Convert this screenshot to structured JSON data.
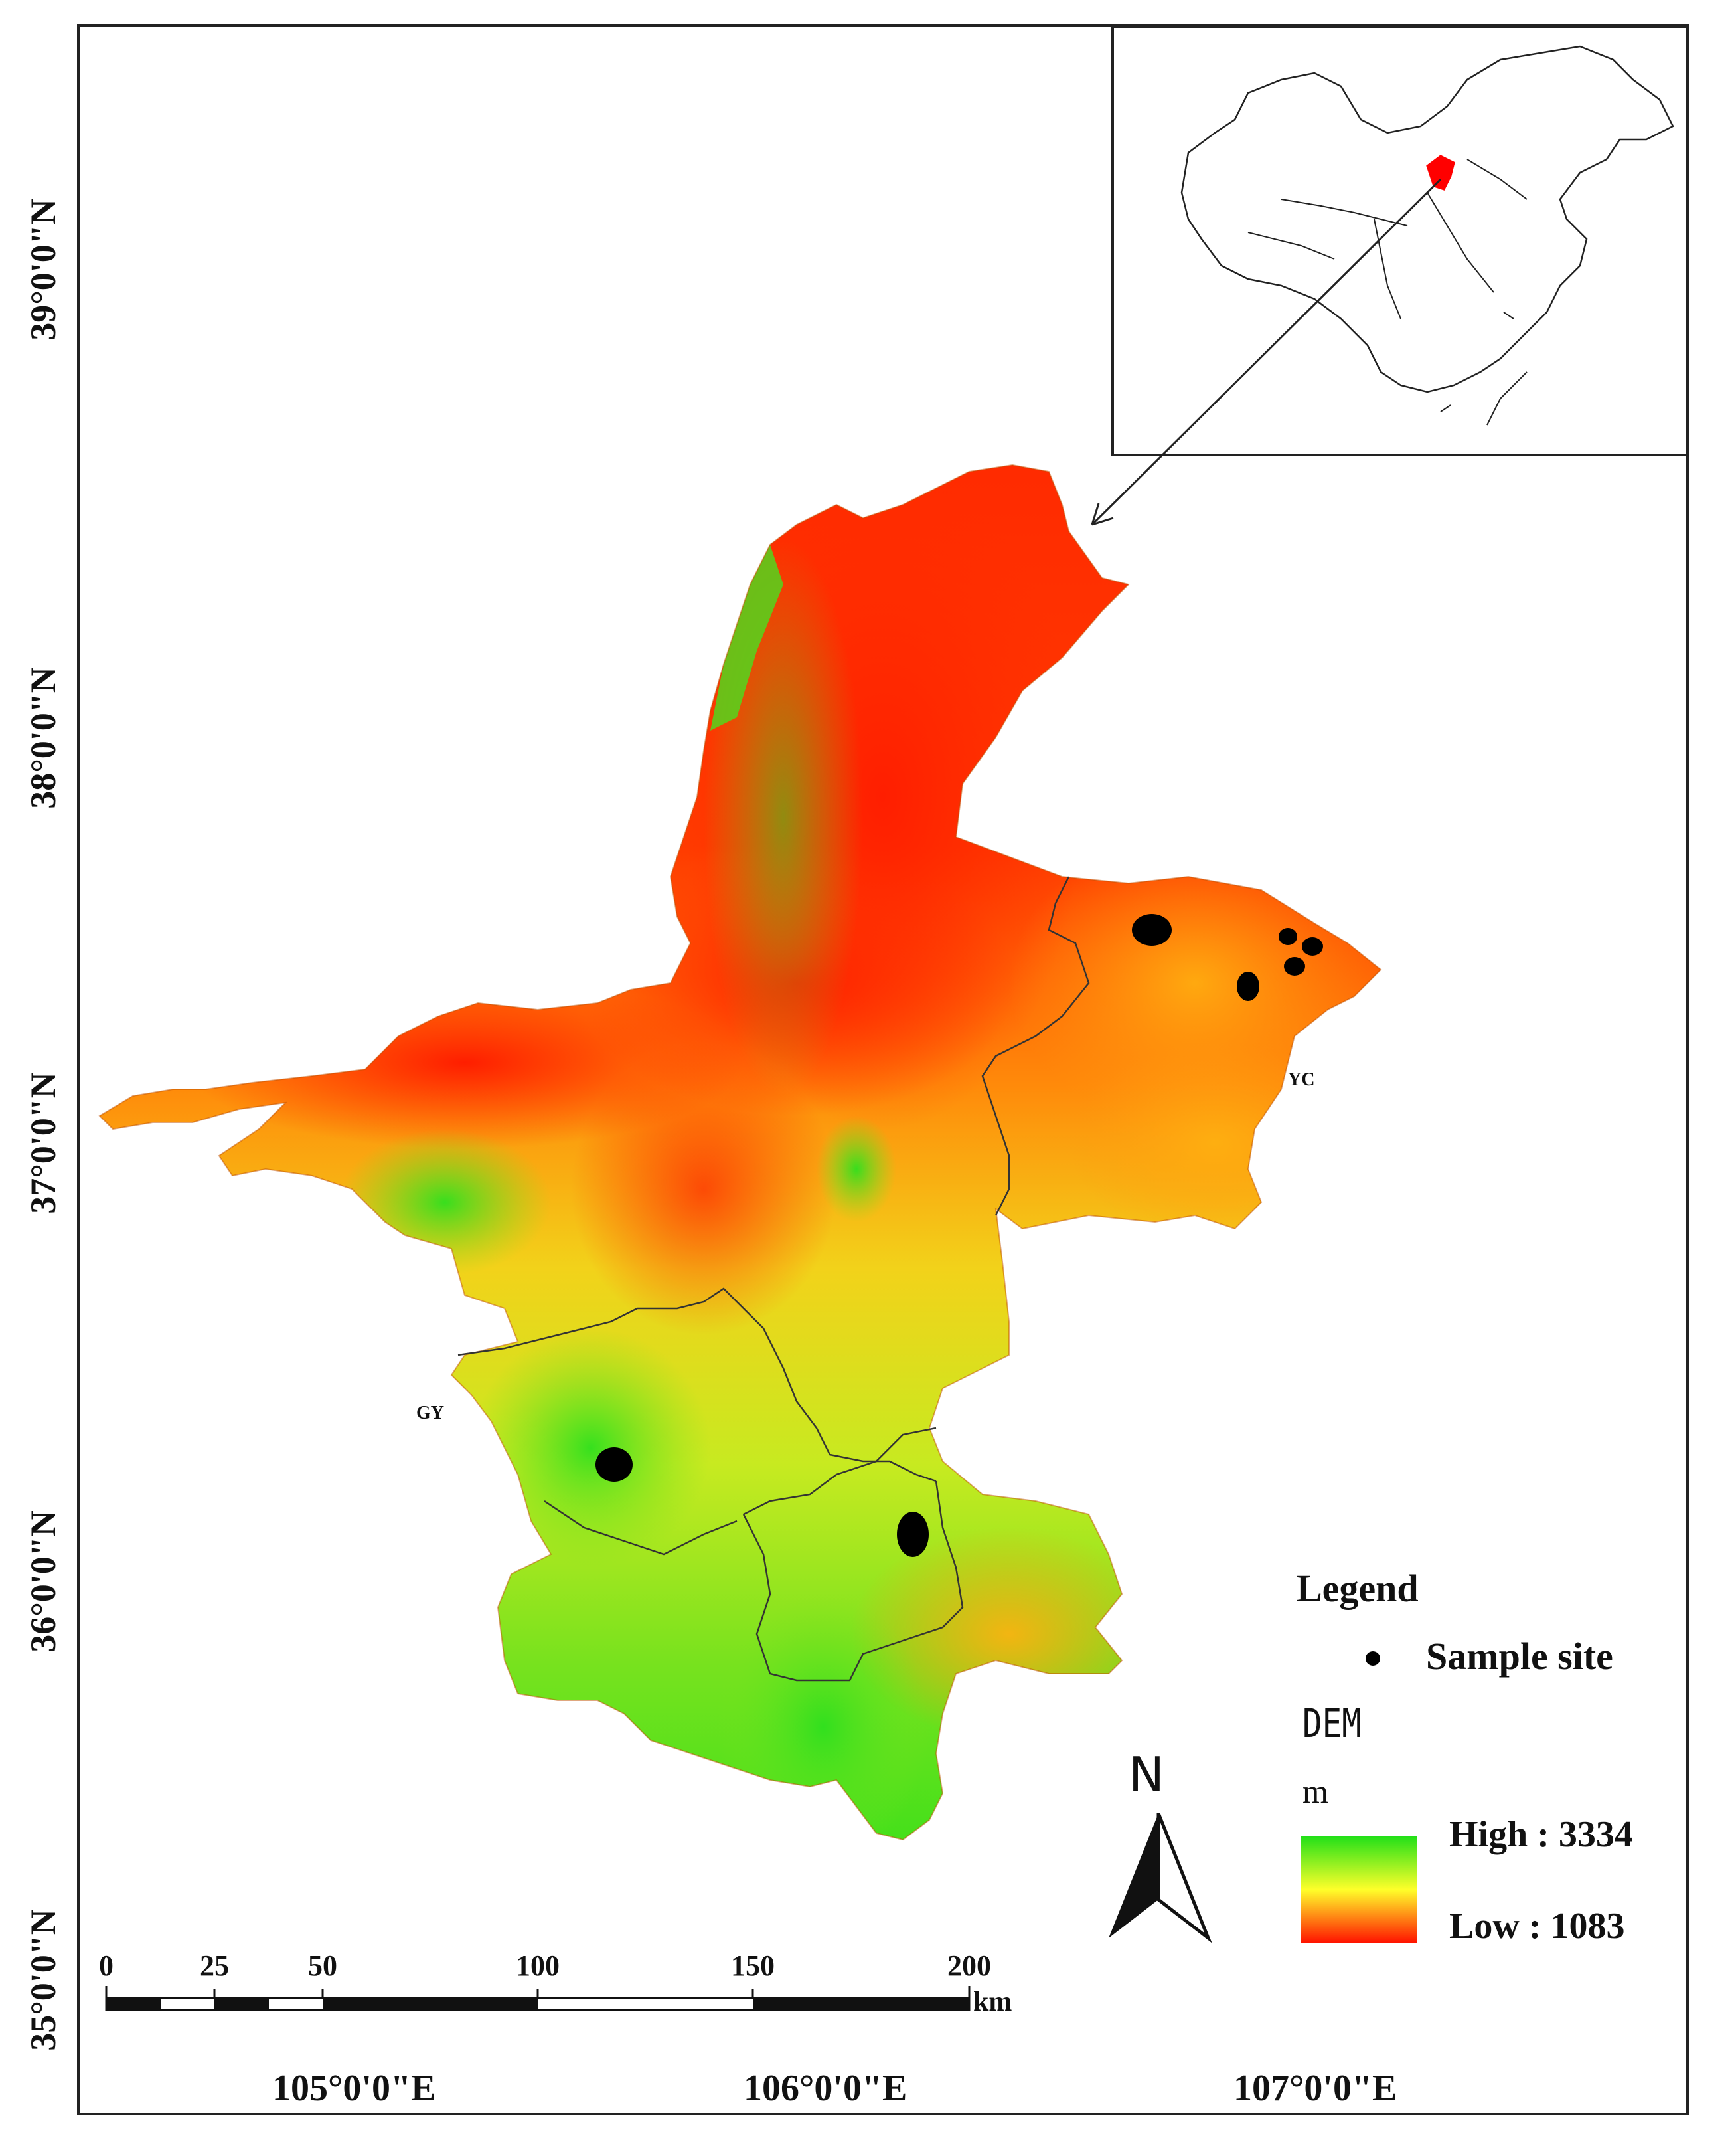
{
  "map": {
    "latitudes": [
      "39°0'0\"N",
      "38°0'0\"N",
      "37°0'0\"N",
      "36°0'0\"N",
      "35°0'0\"N"
    ],
    "longitudes": [
      "105°0'0\"E",
      "106°0'0\"E",
      "107°0'0\"E"
    ],
    "regions": {
      "yc": "YC",
      "gy": "GY"
    }
  },
  "legend": {
    "title": "Legend",
    "sample_site": "Sample site",
    "dem_title": "DEM",
    "unit": "m",
    "high": "High : 3334",
    "low": "Low : 1083",
    "ramp_colors": [
      "#22e018",
      "#ffff2a",
      "#ff1400"
    ]
  },
  "north_arrow": {
    "label": "N"
  },
  "scale_bar": {
    "ticks": [
      "0",
      "25",
      "50",
      "100",
      "150",
      "200"
    ],
    "unit": "km"
  },
  "colors": {
    "dem_low": "#ff1e00",
    "dem_mid": "#f5e61a",
    "dem_high": "#2fe020",
    "highlight": "#ff0000"
  }
}
